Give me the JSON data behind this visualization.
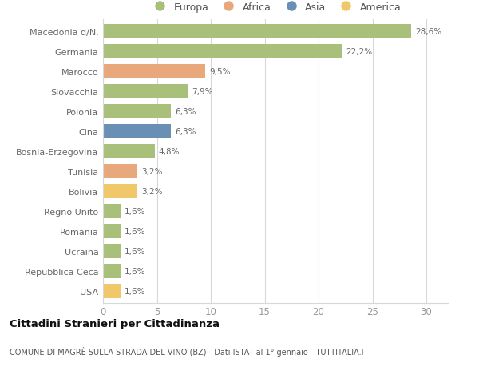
{
  "categories": [
    "Macedonia d/N.",
    "Germania",
    "Marocco",
    "Slovacchia",
    "Polonia",
    "Cina",
    "Bosnia-Erzegovina",
    "Tunisia",
    "Bolivia",
    "Regno Unito",
    "Romania",
    "Ucraina",
    "Repubblica Ceca",
    "USA"
  ],
  "values": [
    28.6,
    22.2,
    9.5,
    7.9,
    6.3,
    6.3,
    4.8,
    3.2,
    3.2,
    1.6,
    1.6,
    1.6,
    1.6,
    1.6
  ],
  "labels": [
    "28,6%",
    "22,2%",
    "9,5%",
    "7,9%",
    "6,3%",
    "6,3%",
    "4,8%",
    "3,2%",
    "3,2%",
    "1,6%",
    "1,6%",
    "1,6%",
    "1,6%",
    "1,6%"
  ],
  "colors": [
    "#a8c07a",
    "#a8c07a",
    "#e8a87c",
    "#a8c07a",
    "#a8c07a",
    "#6a8fb5",
    "#a8c07a",
    "#e8a87c",
    "#f0c86a",
    "#a8c07a",
    "#a8c07a",
    "#a8c07a",
    "#a8c07a",
    "#f0c86a"
  ],
  "legend_labels": [
    "Europa",
    "Africa",
    "Asia",
    "America"
  ],
  "legend_colors": [
    "#a8c07a",
    "#e8a87c",
    "#6a8fb5",
    "#f0c86a"
  ],
  "title": "Cittadini Stranieri per Cittadinanza",
  "subtitle": "COMUNE DI MAGRÈ SULLA STRADA DEL VINO (BZ) - Dati ISTAT al 1° gennaio - TUTTITALIA.IT",
  "xlim": [
    0,
    32
  ],
  "xticks": [
    0,
    5,
    10,
    15,
    20,
    25,
    30
  ],
  "background_color": "#ffffff",
  "grid_color": "#d8d8d8",
  "bar_height": 0.72
}
